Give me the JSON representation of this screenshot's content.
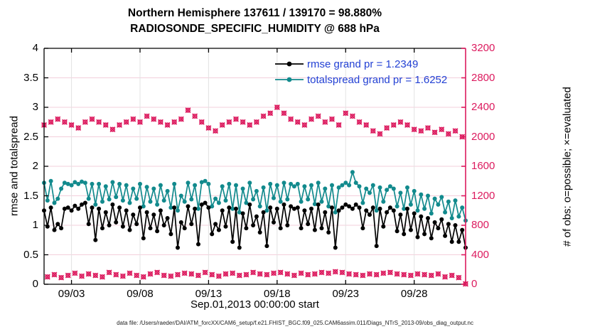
{
  "header": {
    "title_line1": "Northern Hemisphere 137611 / 139170 = 98.880%",
    "title_line2": "RADIOSONDE_SPECIFIC_HUMIDITY @ 688 hPa"
  },
  "legend": {
    "entries": [
      {
        "label": "rmse grand pr = 1.2349",
        "color": "#000000"
      },
      {
        "label": "totalspread grand pr = 1.6252",
        "color": "#128a8d"
      }
    ],
    "text_color": "#2341d4"
  },
  "footer": {
    "data_file": "data file: /Users/raeder/DAI/ATM_forcXX/CAM6_setup/f.e21.FHIST_BGC.f09_025.CAM6assim.011/Diags_NTrS_2013-09/obs_diag_output.nc"
  },
  "colors": {
    "obs": "#dc1a5e",
    "rmse": "#000000",
    "totalspread": "#128a8d",
    "grid_vertical": "#e3e3e3",
    "grid_horizontal": "#f3cfdb",
    "axis_left": "#000000",
    "axis_right": "#dc1a5e"
  },
  "chart_data": {
    "type": "line",
    "title": "Northern Hemisphere 137611 / 139170 = 98.880%",
    "subtitle": "RADIOSONDE_SPECIFIC_HUMIDITY @ 688 hPa",
    "xlabel": "Sep.01,2013 00:00:00 start",
    "ylabel_left": "rmse and totalspread",
    "ylabel_right": "# of obs: o=possible; ×=evaluated",
    "ylim_left": [
      0,
      4
    ],
    "yticks_left": [
      0,
      0.5,
      1,
      1.5,
      2,
      2.5,
      3,
      3.5,
      4
    ],
    "ytick_labels_left": [
      "0",
      "0.5",
      "1",
      "1.5",
      "2",
      "2.5",
      "3",
      "3.5",
      "4"
    ],
    "ylim_right": [
      0,
      3200
    ],
    "yticks_right": [
      0,
      400,
      800,
      1200,
      1600,
      2000,
      2400,
      2800,
      3200
    ],
    "ytick_labels_right": [
      "0",
      "400",
      "800",
      "1200",
      "1600",
      "2000",
      "2400",
      "2800",
      "3200"
    ],
    "x_tick_labels": [
      "09/03",
      "09/08",
      "09/13",
      "09/18",
      "09/23",
      "09/28"
    ],
    "x_tick_indices": [
      8,
      28,
      48,
      68,
      88,
      108
    ],
    "x_start": "Sep.01,2013 00:00:00",
    "x_step_hours": 6,
    "n_points": 124,
    "grid": true,
    "legend_position": "top-right-inside",
    "series": [
      {
        "name": "rmse",
        "axis": "left",
        "marker": "filled-circle",
        "grand_pr": 1.2349,
        "values": [
          1.25,
          0.98,
          1.3,
          0.92,
          1.02,
          0.95,
          1.28,
          1.3,
          1.25,
          1.33,
          1.28,
          1.35,
          1.38,
          1.02,
          1.3,
          0.75,
          1.28,
          0.95,
          1.22,
          1.0,
          1.35,
          1.05,
          1.3,
          0.98,
          1.25,
          0.92,
          1.18,
          1.02,
          1.3,
          0.78,
          1.22,
          0.95,
          1.18,
          0.9,
          1.25,
          1.0,
          1.12,
          0.85,
          1.3,
          0.62,
          1.05,
          0.95,
          1.32,
          1.02,
          1.28,
          0.68,
          1.35,
          1.38,
          1.3,
          0.85,
          1.02,
          0.92,
          1.25,
          0.98,
          1.3,
          0.72,
          1.28,
          0.62,
          1.2,
          0.95,
          1.35,
          1.0,
          1.15,
          0.88,
          1.22,
          0.65,
          1.3,
          1.05,
          1.28,
          0.95,
          1.35,
          1.0,
          1.32,
          1.28,
          1.3,
          0.95,
          1.25,
          1.02,
          1.28,
          0.92,
          1.35,
          0.95,
          1.22,
          0.88,
          1.3,
          0.62,
          1.25,
          1.3,
          1.35,
          1.32,
          1.28,
          1.35,
          1.3,
          0.95,
          1.25,
          1.18,
          1.3,
          0.65,
          1.28,
          0.98,
          1.22,
          1.3,
          1.25,
          0.9,
          1.18,
          0.85,
          1.28,
          0.92,
          1.2,
          0.8,
          1.15,
          0.85,
          1.12,
          0.78,
          1.05,
          0.95,
          1.1,
          0.82,
          1.02,
          0.72,
          1.0,
          0.72,
          0.92,
          0.62
        ]
      },
      {
        "name": "totalspread",
        "axis": "left",
        "marker": "filled-circle",
        "grand_pr": 1.6252,
        "values": [
          1.72,
          1.42,
          1.75,
          1.38,
          1.45,
          1.62,
          1.72,
          1.7,
          1.68,
          1.73,
          1.7,
          1.74,
          1.72,
          1.45,
          1.7,
          1.35,
          1.7,
          1.4,
          1.66,
          1.44,
          1.73,
          1.48,
          1.7,
          1.42,
          1.68,
          1.38,
          1.62,
          1.45,
          1.7,
          1.32,
          1.65,
          1.4,
          1.62,
          1.35,
          1.68,
          1.42,
          1.58,
          1.3,
          1.7,
          1.25,
          1.5,
          1.4,
          1.72,
          1.44,
          1.68,
          1.28,
          1.73,
          1.75,
          1.7,
          1.32,
          1.45,
          1.38,
          1.66,
          1.42,
          1.7,
          1.28,
          1.68,
          1.22,
          1.62,
          1.38,
          1.72,
          1.44,
          1.58,
          1.32,
          1.64,
          1.25,
          1.7,
          1.46,
          1.68,
          1.4,
          1.72,
          1.44,
          1.7,
          1.66,
          1.7,
          1.4,
          1.66,
          1.44,
          1.68,
          1.36,
          1.72,
          1.4,
          1.62,
          1.32,
          1.68,
          1.22,
          1.64,
          1.68,
          1.72,
          1.68,
          1.9,
          1.72,
          1.66,
          1.38,
          1.62,
          1.55,
          1.68,
          1.25,
          1.64,
          1.4,
          1.6,
          1.66,
          1.62,
          1.32,
          1.55,
          1.28,
          1.64,
          1.35,
          1.58,
          1.25,
          1.52,
          1.28,
          1.5,
          1.2,
          1.45,
          1.35,
          1.48,
          1.22,
          1.4,
          1.12,
          1.42,
          1.15,
          1.3,
          1.08
        ]
      },
      {
        "name": "obs_count",
        "axis": "right",
        "marker": "circle-plus-cross",
        "values": [
          2160,
          100,
          2200,
          130,
          2240,
          90,
          2200,
          120,
          2160,
          150,
          2120,
          110,
          2200,
          140,
          2240,
          120,
          2200,
          100,
          2160,
          160,
          2100,
          130,
          2160,
          110,
          2200,
          150,
          2240,
          120,
          2200,
          100,
          2280,
          140,
          2240,
          160,
          2200,
          120,
          2160,
          110,
          2200,
          130,
          2240,
          150,
          2360,
          140,
          2280,
          120,
          2200,
          160,
          2120,
          130,
          2080,
          110,
          2160,
          140,
          2200,
          150,
          2240,
          120,
          2200,
          130,
          2160,
          160,
          2200,
          140,
          2280,
          130,
          2320,
          150,
          2400,
          160,
          2320,
          140,
          2240,
          120,
          2200,
          150,
          2160,
          130,
          2240,
          140,
          2280,
          160,
          2200,
          150,
          2240,
          170,
          2160,
          160,
          2320,
          140,
          2280,
          130,
          2200,
          120,
          2160,
          140,
          2080,
          130,
          2040,
          150,
          2120,
          160,
          2160,
          140,
          2200,
          130,
          2160,
          120,
          2100,
          140,
          2080,
          130,
          2120,
          120,
          2060,
          140,
          2100,
          100,
          2040,
          120,
          2080,
          90,
          2000,
          5
        ]
      }
    ]
  }
}
